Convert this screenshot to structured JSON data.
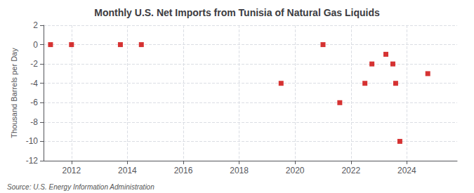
{
  "chart_data": {
    "type": "scatter",
    "title": "Monthly U.S. Net Imports from Tunisia of Natural Gas Liquids",
    "ylabel": "Thousand Barrels per Day",
    "annotations": [
      "Source: U.S. Energy Information Administration"
    ],
    "x": [
      2011.25,
      2012.0,
      2013.75,
      2014.5,
      2019.5,
      2021.0,
      2021.6,
      2022.5,
      2022.75,
      2023.25,
      2023.5,
      2023.6,
      2023.75,
      2024.75
    ],
    "values": [
      0,
      0,
      0,
      0,
      -4,
      0,
      -6,
      -4,
      -2,
      -1,
      -2,
      -4,
      -10,
      -3
    ],
    "color": "#cc0000",
    "marker": "square",
    "xlim": [
      2011.0,
      2025.8
    ],
    "xticks": [
      2012,
      2014,
      2016,
      2018,
      2020,
      2022,
      2024
    ],
    "ylim": [
      -12,
      2
    ],
    "yticks": [
      2,
      0,
      -2,
      -4,
      -6,
      -8,
      -10,
      -12
    ],
    "grid": true
  }
}
